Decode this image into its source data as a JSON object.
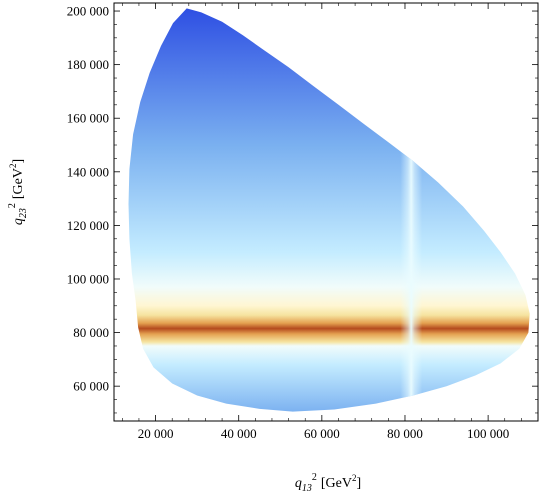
{
  "chart_data": {
    "type": "heatmap",
    "title": "",
    "xlabel": {
      "var": "q",
      "sub": "13",
      "sup": "2",
      "unit": "[GeV",
      "unit_sup": "2",
      "unit_end": "]"
    },
    "ylabel": {
      "var": "q",
      "sub": "23",
      "sup": "2",
      "unit": "[GeV",
      "unit_sup": "2",
      "unit_end": "]"
    },
    "xlim": [
      10000,
      112000
    ],
    "ylim": [
      47000,
      203000
    ],
    "x_ticks": [
      20000,
      40000,
      60000,
      80000,
      100000
    ],
    "x_tick_labels": [
      "20 000",
      "40 000",
      "60 000",
      "80 000",
      "100 000"
    ],
    "y_ticks": [
      60000,
      80000,
      100000,
      120000,
      140000,
      160000,
      180000,
      200000
    ],
    "y_tick_labels": [
      "60 000",
      "80 000",
      "100 000",
      "120 000",
      "140 000",
      "160 000",
      "180 000",
      "200 000"
    ],
    "region_boundary": [
      [
        27500,
        201000
      ],
      [
        31000,
        199500
      ],
      [
        36000,
        196000
      ],
      [
        41000,
        191000
      ],
      [
        46000,
        185500
      ],
      [
        52000,
        179000
      ],
      [
        58000,
        172000
      ],
      [
        64000,
        165000
      ],
      [
        70000,
        158000
      ],
      [
        76000,
        151000
      ],
      [
        82000,
        144000
      ],
      [
        88000,
        136000
      ],
      [
        94000,
        127000
      ],
      [
        99000,
        118000
      ],
      [
        103000,
        110000
      ],
      [
        106500,
        102000
      ],
      [
        109000,
        94000
      ],
      [
        110000,
        87000
      ],
      [
        109700,
        80000
      ],
      [
        107500,
        74000
      ],
      [
        103000,
        68500
      ],
      [
        97000,
        64000
      ],
      [
        90000,
        60000
      ],
      [
        82000,
        56500
      ],
      [
        73000,
        53500
      ],
      [
        63000,
        51300
      ],
      [
        53000,
        50500
      ],
      [
        45000,
        51500
      ],
      [
        37000,
        53500
      ],
      [
        30000,
        56500
      ],
      [
        24000,
        61000
      ],
      [
        19500,
        67000
      ],
      [
        17000,
        74000
      ],
      [
        15800,
        82000
      ],
      [
        15200,
        92000
      ],
      [
        14300,
        102000
      ],
      [
        13700,
        115000
      ],
      [
        13500,
        128000
      ],
      [
        13700,
        141000
      ],
      [
        14600,
        154000
      ],
      [
        16300,
        166000
      ],
      [
        18600,
        177000
      ],
      [
        21300,
        187000
      ],
      [
        24200,
        195500
      ]
    ],
    "horizontal_resonance": {
      "center": 81500,
      "halfwidth": 2000
    },
    "vertical_resonance": {
      "center": 81500,
      "halfwidth": 1200
    },
    "colors": {
      "high": "#2e4fe3",
      "mid": "#7ab0f0",
      "low": "#c4ecff",
      "light": "#f1fcfb",
      "pale_yellow": "#fff6d2",
      "yellow": "#f6e4a0",
      "orange": "#e4a050",
      "peak": "#b44a1e"
    }
  }
}
